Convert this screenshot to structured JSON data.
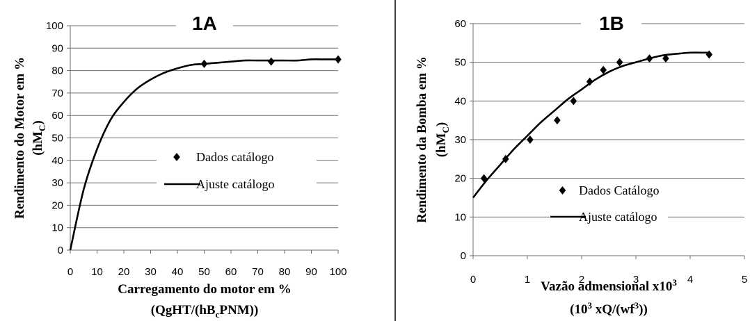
{
  "chart_data": [
    {
      "type": "scatter",
      "panel_label": "1A",
      "xlabel_line1": "Carregamento do motor em %",
      "xlabel_line2_parts": [
        "(QgHT/(hB",
        "c",
        "PNM))"
      ],
      "ylabel_line1": "Rendimento do Motor  em %",
      "ylabel_line2_parts": [
        "(hM",
        "C",
        ")"
      ],
      "xlim": [
        0,
        100
      ],
      "ylim": [
        0,
        100
      ],
      "xticks": [
        "0",
        "10",
        "20",
        "30",
        "40",
        "50",
        "60",
        "70",
        "80",
        "90",
        "100"
      ],
      "yticks": [
        "0",
        "10",
        "20",
        "30",
        "40",
        "50",
        "60",
        "70",
        "80",
        "90",
        "100"
      ],
      "grid": "horizontal",
      "legend_position": "right",
      "series": [
        {
          "name": "Dados catálogo",
          "style": "markers",
          "x": [
            50,
            75,
            100
          ],
          "y": [
            83,
            84,
            85
          ]
        },
        {
          "name": "Ajuste catálogo",
          "style": "line",
          "x": [
            0,
            5,
            10,
            15,
            20,
            25,
            30,
            35,
            40,
            45,
            50,
            55,
            60,
            65,
            70,
            75,
            80,
            85,
            90,
            95,
            100
          ],
          "y": [
            0,
            27,
            45,
            58,
            66,
            72,
            76,
            79,
            81,
            82.5,
            83,
            83.5,
            84,
            84.5,
            84.5,
            84.5,
            84.5,
            84.5,
            85,
            85,
            85
          ]
        }
      ]
    },
    {
      "type": "scatter",
      "panel_label": "1B",
      "xlabel_line1_parts": [
        "Vazão admensional x10",
        "3"
      ],
      "xlabel_line2_parts": [
        "(10",
        "3",
        " xQ/(wf",
        "3",
        "))"
      ],
      "ylabel_line1": "Rendimento da Bomba  em %",
      "ylabel_line2_parts": [
        "(hM",
        "C",
        ")"
      ],
      "xlim": [
        0,
        5
      ],
      "ylim": [
        0,
        60
      ],
      "xticks": [
        "0",
        "1",
        "2",
        "3",
        "4",
        "5"
      ],
      "yticks": [
        "0",
        "10",
        "20",
        "30",
        "40",
        "50",
        "60"
      ],
      "grid": "horizontal",
      "legend_position": "center-right",
      "series": [
        {
          "name": "Dados Catálogo",
          "style": "markers",
          "x": [
            0.2,
            0.6,
            1.05,
            1.55,
            1.85,
            2.15,
            2.4,
            2.7,
            3.25,
            3.55,
            4.35
          ],
          "y": [
            20,
            25,
            30,
            35,
            40,
            45,
            48,
            50,
            51,
            51,
            52
          ]
        },
        {
          "name": "Ajuste catálogo",
          "style": "line",
          "x": [
            0,
            0.25,
            0.5,
            0.75,
            1.0,
            1.25,
            1.5,
            1.75,
            2.0,
            2.25,
            2.5,
            2.75,
            3.0,
            3.25,
            3.5,
            3.75,
            4.0,
            4.2,
            4.35
          ],
          "y": [
            15,
            19.5,
            23.5,
            27.5,
            31,
            34.5,
            37.5,
            40.5,
            43,
            45.5,
            47.5,
            49,
            50,
            51,
            51.8,
            52.2,
            52.5,
            52.5,
            52.5
          ]
        }
      ]
    }
  ]
}
